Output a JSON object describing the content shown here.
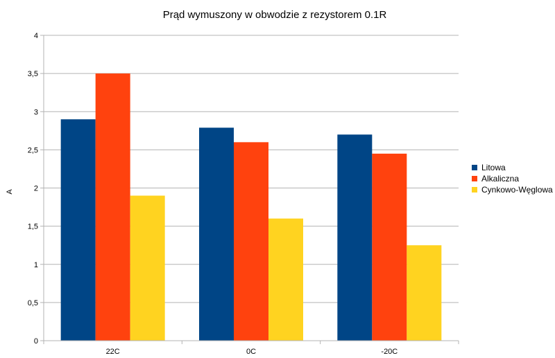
{
  "chart_data": {
    "type": "bar",
    "title": "Prąd wymuszony w obwodzie z rezystorem 0.1R",
    "xlabel": "",
    "ylabel": "A",
    "categories": [
      "22C",
      "0C",
      "-20C"
    ],
    "series": [
      {
        "name": "Litowa",
        "values": [
          2.9,
          2.79,
          2.7
        ],
        "color": "#004586"
      },
      {
        "name": "Alkaliczna",
        "values": [
          3.5,
          2.6,
          2.45
        ],
        "color": "#ff420e"
      },
      {
        "name": "Cynkowo-Węglowa",
        "values": [
          1.9,
          1.6,
          1.25
        ],
        "color": "#ffd320"
      }
    ],
    "ylim": [
      0,
      4
    ],
    "yticks": [
      "0",
      "0,5",
      "1",
      "1,5",
      "2",
      "2,5",
      "3",
      "3,5",
      "4"
    ],
    "ytick_values": [
      0,
      0.5,
      1,
      1.5,
      2,
      2.5,
      3,
      3.5,
      4
    ],
    "grid": true,
    "legend_position": "right"
  }
}
